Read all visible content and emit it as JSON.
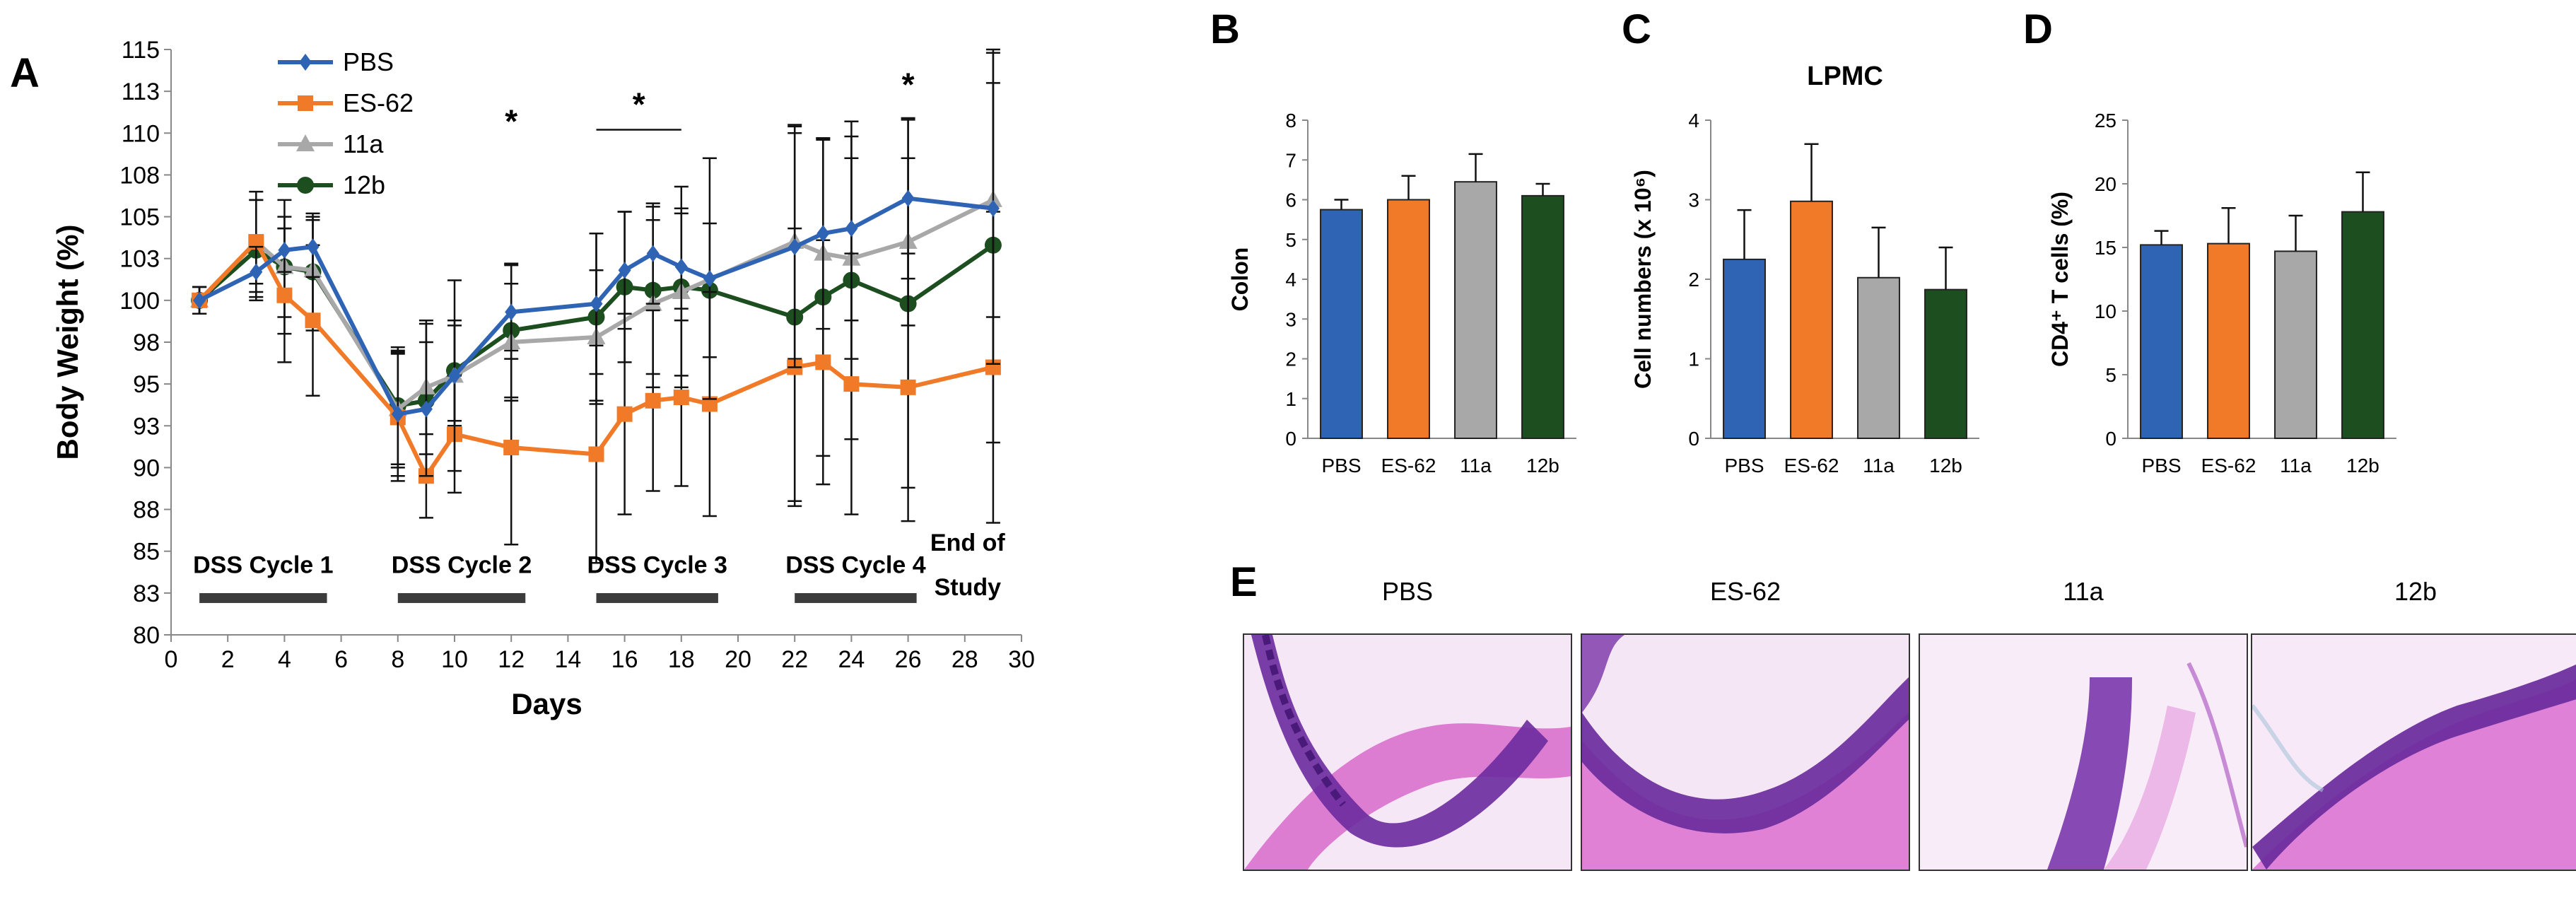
{
  "panels": {
    "a": "A",
    "b": "B",
    "c": "C",
    "d": "D",
    "e": "E"
  },
  "colors": {
    "PBS": "#2f64b5",
    "ES-62": "#f07a28",
    "11a": "#a8a8a8",
    "12b": "#1c4e1f"
  },
  "chart_data": [
    {
      "id": "A",
      "type": "line",
      "xlabel": "Days",
      "ylabel": "Body Weight (%)",
      "xlim": [
        0,
        30
      ],
      "ylim": [
        80,
        115
      ],
      "xticks": [
        0,
        2,
        4,
        6,
        8,
        10,
        12,
        14,
        16,
        18,
        20,
        22,
        24,
        26,
        28,
        30
      ],
      "ytick_labels": [
        "80",
        "83",
        "85",
        "88",
        "90",
        "93",
        "95",
        "98",
        "100",
        "103",
        "105",
        "108",
        "110",
        "113",
        "115"
      ],
      "ytick_values": [
        80,
        82.5,
        85,
        87.5,
        90,
        92.5,
        95,
        97.5,
        100,
        102.5,
        105,
        107.5,
        110,
        112.5,
        115
      ],
      "legend": [
        "PBS",
        "ES-62",
        "11a",
        "12b"
      ],
      "series": [
        {
          "name": "12b",
          "marker": "circle",
          "x": [
            1,
            3,
            4,
            5,
            8,
            9,
            10,
            12,
            15,
            16,
            17,
            18,
            19,
            22,
            23,
            24,
            26,
            29
          ],
          "y": [
            100,
            103,
            102,
            101.7,
            93.7,
            94,
            95.8,
            98.2,
            99,
            100.8,
            100.6,
            100.8,
            100.6,
            99,
            100.2,
            101.2,
            99.8,
            103.3
          ],
          "err": [
            0.8,
            3,
            4,
            3.5,
            3.5,
            4.6,
            3,
            4,
            5,
            4.5,
            5,
            6,
            4,
            11,
            9.5,
            9.5,
            11,
            11.8
          ]
        },
        {
          "name": "11a",
          "marker": "triangle",
          "x": [
            1,
            3,
            4,
            5,
            8,
            9,
            10,
            12,
            15,
            17,
            18,
            22,
            23,
            24,
            26,
            29
          ],
          "y": [
            100,
            103.5,
            102,
            101.8,
            93.5,
            94.8,
            95.5,
            97.5,
            97.8,
            99.8,
            100.5,
            103.5,
            102.8,
            102.5,
            103.5,
            106
          ],
          "err": [
            0.8,
            2.5,
            3,
            3,
            3.5,
            4,
            3,
            3.5,
            4,
            5,
            5,
            7,
            6.8,
            6,
            5,
            7
          ]
        },
        {
          "name": "ES-62",
          "marker": "square",
          "x": [
            1,
            3,
            4,
            5,
            8,
            9,
            10,
            12,
            15,
            16,
            17,
            18,
            19,
            22,
            23,
            24,
            26,
            29
          ],
          "y": [
            100,
            103.5,
            100.3,
            98.8,
            93,
            89.5,
            92,
            91.2,
            90.8,
            93.2,
            94,
            94.2,
            93.8,
            96,
            96.3,
            95,
            94.8,
            96
          ],
          "err": [
            0.8,
            3,
            4,
            4.5,
            3.8,
            2.5,
            3.5,
            5.8,
            6.5,
            6,
            5.4,
            5.3,
            6.7,
            8.3,
            7.3,
            7.8,
            8,
            9.3
          ]
        },
        {
          "name": "PBS",
          "marker": "diamond",
          "x": [
            1,
            3,
            4,
            5,
            8,
            9,
            10,
            12,
            15,
            16,
            17,
            18,
            19,
            22,
            23,
            24,
            26,
            29
          ],
          "y": [
            100,
            101.7,
            103,
            103.2,
            93.2,
            93.5,
            95.5,
            99.3,
            99.8,
            101.8,
            102.8,
            102,
            101.3,
            103.2,
            104,
            104.3,
            106.1,
            105.5
          ],
          "err": [
            0.8,
            1.5,
            1.3,
            1.8,
            3.7,
            4,
            5.7,
            2.8,
            4.2,
            3.5,
            3,
            3.2,
            7.2,
            7.2,
            5.7,
            5.5,
            4.8,
            9.3
          ]
        }
      ],
      "significance": [
        {
          "x": 12,
          "y": 110.8,
          "label": "*"
        },
        {
          "x": 16.5,
          "y": 111.8,
          "label": "*",
          "bracket": [
            15,
            18,
            110.2
          ]
        },
        {
          "x": 26,
          "y": 113,
          "label": "*"
        }
      ],
      "dss_cycles": [
        {
          "label": "DSS Cycle 1",
          "start": 1,
          "end": 5.5
        },
        {
          "label": "DSS Cycle 2",
          "start": 8,
          "end": 12.5
        },
        {
          "label": "DSS Cycle 3",
          "start": 15,
          "end": 19.3
        },
        {
          "label": "DSS Cycle 4",
          "start": 22,
          "end": 26.3
        }
      ],
      "end_label": [
        "End of",
        "Study"
      ]
    },
    {
      "id": "B",
      "type": "bar",
      "title": "",
      "ylabel": "Colon",
      "categories": [
        "PBS",
        "ES-62",
        "11a",
        "12b"
      ],
      "values": [
        5.75,
        6.0,
        6.45,
        6.1
      ],
      "errors": [
        0.25,
        0.6,
        0.7,
        0.3
      ],
      "ylim": [
        0,
        8
      ],
      "yticks": [
        0,
        1,
        2,
        3,
        4,
        5,
        6,
        7,
        8
      ]
    },
    {
      "id": "C",
      "type": "bar",
      "title": "LPMC",
      "ylabel": "Cell numbers (x 10⁶)",
      "categories": [
        "PBS",
        "ES-62",
        "11a",
        "12b"
      ],
      "values": [
        2.25,
        2.98,
        2.02,
        1.87
      ],
      "errors": [
        0.62,
        0.72,
        0.63,
        0.53
      ],
      "ylim": [
        0,
        4
      ],
      "yticks": [
        0,
        1,
        2,
        3,
        4
      ]
    },
    {
      "id": "D",
      "type": "bar",
      "title": "",
      "ylabel": "CD4⁺ T cells (%)",
      "categories": [
        "PBS",
        "ES-62",
        "11a",
        "12b"
      ],
      "values": [
        15.2,
        15.3,
        14.7,
        17.8
      ],
      "errors": [
        1.1,
        2.8,
        2.8,
        3.1
      ],
      "ylim": [
        0,
        25
      ],
      "yticks": [
        0,
        5,
        10,
        15,
        20,
        25
      ]
    }
  ],
  "histology": [
    {
      "label": "PBS"
    },
    {
      "label": "ES-62"
    },
    {
      "label": "11a"
    },
    {
      "label": "12b"
    }
  ]
}
